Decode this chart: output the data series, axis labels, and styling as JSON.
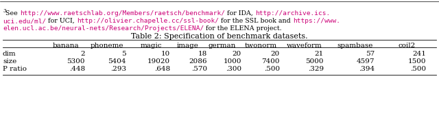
{
  "title": "Table 2: Specification of benchmark datasets.",
  "columns": [
    "banana",
    "phoneme",
    "magic",
    "image",
    "german",
    "twonorm",
    "waveform",
    "spambase",
    "coil2"
  ],
  "row_labels": [
    "dim",
    "size",
    "P ratio"
  ],
  "rows": [
    [
      "2",
      "5",
      "10",
      "18",
      "20",
      "20",
      "21",
      "57",
      "241"
    ],
    [
      "5300",
      "5404",
      "19020",
      "2086",
      "1000",
      "7400",
      "5000",
      "4597",
      "1500"
    ],
    [
      ".448",
      ".293",
      ".648",
      ".570",
      ".300",
      ".500",
      ".329",
      ".394",
      ".500"
    ]
  ],
  "font_size": 7.5,
  "title_font_size": 8.0,
  "footnote_font_size": 6.8,
  "url_color": "#cc0077",
  "text_color": "#000000",
  "line1": [
    [
      "3",
      "black",
      false,
      true
    ],
    [
      "See ",
      "black",
      false,
      false
    ],
    [
      "http://www.raetschlab.org/Members/raetsch/benchmark/",
      "#cc0077",
      true,
      false
    ],
    [
      " for IDA, ",
      "black",
      false,
      false
    ],
    [
      "http://archive.ics.",
      "#cc0077",
      true,
      false
    ]
  ],
  "line2": [
    [
      "uci.edu/ml/",
      "#cc0077",
      true,
      false
    ],
    [
      " for UCI, ",
      "black",
      false,
      false
    ],
    [
      "http://olivier.chapelle.cc/ssl-book/",
      "#cc0077",
      true,
      false
    ],
    [
      " for the SSL book and ",
      "black",
      false,
      false
    ],
    [
      "https://www.",
      "#cc0077",
      true,
      false
    ]
  ],
  "line3": [
    [
      "elen.ucl.ac.be/neural-nets/Research/Projects/ELENA/",
      "#cc0077",
      true,
      false
    ],
    [
      " for the ELENA project.",
      "black",
      false,
      false
    ]
  ]
}
